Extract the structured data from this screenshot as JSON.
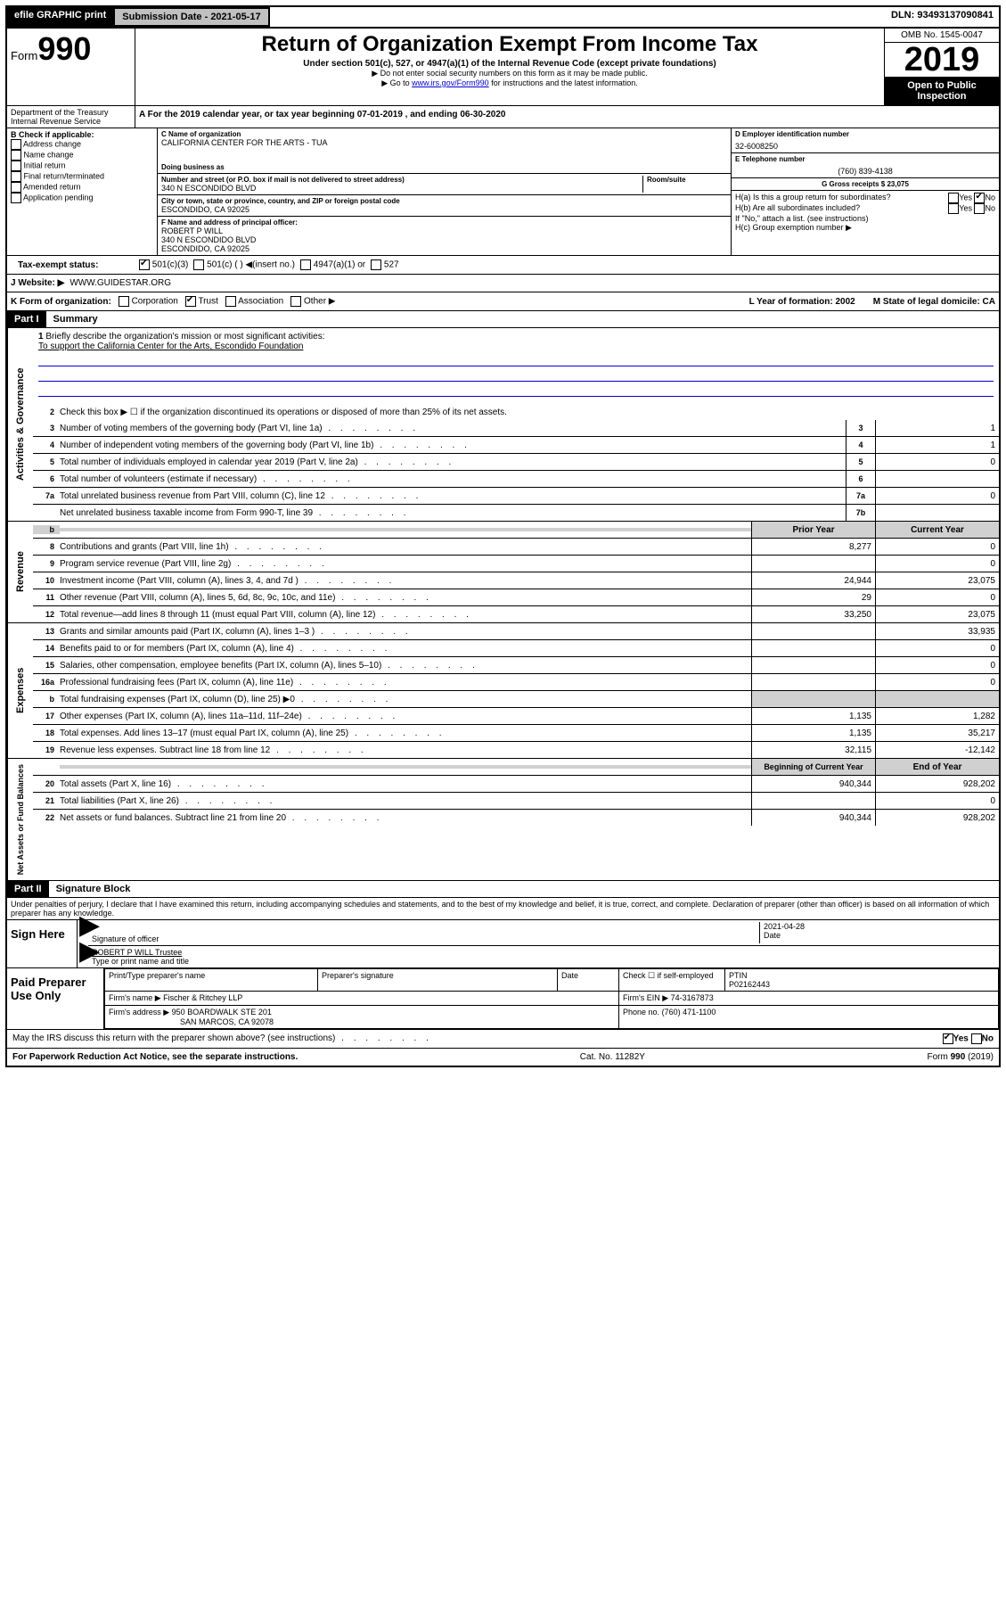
{
  "top": {
    "efile": "efile GRAPHIC print",
    "submission": "Submission Date - 2021-05-17",
    "dln": "DLN: 93493137090841"
  },
  "header": {
    "form_label": "Form",
    "form_number": "990",
    "dept": "Department of the Treasury\nInternal Revenue Service",
    "title": "Return of Organization Exempt From Income Tax",
    "subtitle": "Under section 501(c), 527, or 4947(a)(1) of the Internal Revenue Code (except private foundations)",
    "note1": "▶ Do not enter social security numbers on this form as it may be made public.",
    "note2_pre": "▶ Go to ",
    "note2_link": "www.irs.gov/Form990",
    "note2_post": " for instructions and the latest information.",
    "omb": "OMB No. 1545-0047",
    "year": "2019",
    "open": "Open to Public Inspection"
  },
  "period": "A For the 2019 calendar year, or tax year beginning 07-01-2019   , and ending 06-30-2020",
  "b_check": {
    "label": "B Check if applicable:",
    "items": [
      "Address change",
      "Name change",
      "Initial return",
      "Final return/terminated",
      "Amended return",
      "Application pending"
    ]
  },
  "org": {
    "c_label": "C Name of organization",
    "name": "CALIFORNIA CENTER FOR THE ARTS - TUA",
    "dba_label": "Doing business as",
    "street_label": "Number and street (or P.O. box if mail is not delivered to street address)",
    "room_label": "Room/suite",
    "street": "340 N ESCONDIDO BLVD",
    "city_label": "City or town, state or province, country, and ZIP or foreign postal code",
    "city": "ESCONDIDO, CA  92025",
    "f_label": "F Name and address of principal officer:",
    "officer": "ROBERT P WILL",
    "officer_street": "340 N ESCONDIDO BLVD",
    "officer_city": "ESCONDIDO, CA  92025"
  },
  "right": {
    "d_label": "D Employer identification number",
    "ein": "32-6008250",
    "e_label": "E Telephone number",
    "phone": "(760) 839-4138",
    "g_label": "G Gross receipts $ 23,075",
    "ha": "H(a)  Is this a group return for subordinates?",
    "hb": "H(b)  Are all subordinates included?",
    "hb_note": "If \"No,\" attach a list. (see instructions)",
    "hc": "H(c)  Group exemption number ▶"
  },
  "i_status": {
    "label": "Tax-exempt status:",
    "opts": [
      "501(c)(3)",
      "501(c) (  ) ◀(insert no.)",
      "4947(a)(1) or",
      "527"
    ]
  },
  "j_website": {
    "label": "J   Website: ▶",
    "val": "WWW.GUIDESTAR.ORG"
  },
  "k_form": {
    "label": "K Form of organization:",
    "opts": [
      "Corporation",
      "Trust",
      "Association",
      "Other ▶"
    ],
    "l_label": "L Year of formation: 2002",
    "m_label": "M State of legal domicile: CA"
  },
  "part1": {
    "header": "Part I",
    "title": "Summary",
    "mission_label": "Briefly describe the organization's mission or most significant activities:",
    "mission": "To support the California Center for the Arts, Escondido Foundation",
    "line2": "Check this box ▶ ☐  if the organization discontinued its operations or disposed of more than 25% of its net assets.",
    "lines": [
      {
        "n": "3",
        "t": "Number of voting members of the governing body (Part VI, line 1a)",
        "b": "3",
        "v": "1"
      },
      {
        "n": "4",
        "t": "Number of independent voting members of the governing body (Part VI, line 1b)",
        "b": "4",
        "v": "1"
      },
      {
        "n": "5",
        "t": "Total number of individuals employed in calendar year 2019 (Part V, line 2a)",
        "b": "5",
        "v": "0"
      },
      {
        "n": "6",
        "t": "Total number of volunteers (estimate if necessary)",
        "b": "6",
        "v": ""
      },
      {
        "n": "7a",
        "t": "Total unrelated business revenue from Part VIII, column (C), line 12",
        "b": "7a",
        "v": "0"
      },
      {
        "n": "",
        "t": "Net unrelated business taxable income from Form 990-T, line 39",
        "b": "7b",
        "v": ""
      }
    ],
    "col_headers": {
      "prior": "Prior Year",
      "current": "Current Year"
    },
    "revenue_label": "Revenue",
    "revenue": [
      {
        "n": "8",
        "t": "Contributions and grants (Part VIII, line 1h)",
        "p": "8,277",
        "c": "0"
      },
      {
        "n": "9",
        "t": "Program service revenue (Part VIII, line 2g)",
        "p": "",
        "c": "0"
      },
      {
        "n": "10",
        "t": "Investment income (Part VIII, column (A), lines 3, 4, and 7d )",
        "p": "24,944",
        "c": "23,075"
      },
      {
        "n": "11",
        "t": "Other revenue (Part VIII, column (A), lines 5, 6d, 8c, 9c, 10c, and 11e)",
        "p": "29",
        "c": "0"
      },
      {
        "n": "12",
        "t": "Total revenue—add lines 8 through 11 (must equal Part VIII, column (A), line 12)",
        "p": "33,250",
        "c": "23,075"
      }
    ],
    "expenses_label": "Expenses",
    "expenses": [
      {
        "n": "13",
        "t": "Grants and similar amounts paid (Part IX, column (A), lines 1–3 )",
        "p": "",
        "c": "33,935"
      },
      {
        "n": "14",
        "t": "Benefits paid to or for members (Part IX, column (A), line 4)",
        "p": "",
        "c": "0"
      },
      {
        "n": "15",
        "t": "Salaries, other compensation, employee benefits (Part IX, column (A), lines 5–10)",
        "p": "",
        "c": "0"
      },
      {
        "n": "16a",
        "t": "Professional fundraising fees (Part IX, column (A), line 11e)",
        "p": "",
        "c": "0"
      },
      {
        "n": "b",
        "t": "Total fundraising expenses (Part IX, column (D), line 25) ▶0",
        "p": "grey",
        "c": "grey"
      },
      {
        "n": "17",
        "t": "Other expenses (Part IX, column (A), lines 11a–11d, 11f–24e)",
        "p": "1,135",
        "c": "1,282"
      },
      {
        "n": "18",
        "t": "Total expenses. Add lines 13–17 (must equal Part IX, column (A), line 25)",
        "p": "1,135",
        "c": "35,217"
      },
      {
        "n": "19",
        "t": "Revenue less expenses. Subtract line 18 from line 12",
        "p": "32,115",
        "c": "-12,142"
      }
    ],
    "netassets_label": "Net Assets or Fund Balances",
    "col_headers2": {
      "prior": "Beginning of Current Year",
      "current": "End of Year"
    },
    "netassets": [
      {
        "n": "20",
        "t": "Total assets (Part X, line 16)",
        "p": "940,344",
        "c": "928,202"
      },
      {
        "n": "21",
        "t": "Total liabilities (Part X, line 26)",
        "p": "",
        "c": "0"
      },
      {
        "n": "22",
        "t": "Net assets or fund balances. Subtract line 21 from line 20",
        "p": "940,344",
        "c": "928,202"
      }
    ]
  },
  "part2": {
    "header": "Part II",
    "title": "Signature Block",
    "decl": "Under penalties of perjury, I declare that I have examined this return, including accompanying schedules and statements, and to the best of my knowledge and belief, it is true, correct, and complete. Declaration of preparer (other than officer) is based on all information of which preparer has any knowledge.",
    "sign_here": "Sign Here",
    "sig_officer": "Signature of officer",
    "date": "2021-04-28",
    "date_label": "Date",
    "name_title": "ROBERT P WILL  Trustee",
    "name_title_label": "Type or print name and title",
    "paid_label": "Paid Preparer Use Only",
    "prep_name_label": "Print/Type preparer's name",
    "prep_sig_label": "Preparer's signature",
    "check_self": "Check ☐ if self-employed",
    "ptin_label": "PTIN",
    "ptin": "P02162443",
    "firm_name_label": "Firm's name   ▶",
    "firm_name": "Fischer & Ritchey LLP",
    "firm_ein_label": "Firm's EIN ▶",
    "firm_ein": "74-3167873",
    "firm_addr_label": "Firm's address ▶",
    "firm_addr": "950 BOARDWALK STE 201",
    "firm_city": "SAN MARCOS, CA  92078",
    "firm_phone_label": "Phone no.",
    "firm_phone": "(760) 471-1100",
    "discuss": "May the IRS discuss this return with the preparer shown above? (see instructions)",
    "yes": "Yes",
    "no": "No"
  },
  "footer": {
    "paperwork": "For Paperwork Reduction Act Notice, see the separate instructions.",
    "cat": "Cat. No. 11282Y",
    "form": "Form 990 (2019)"
  }
}
